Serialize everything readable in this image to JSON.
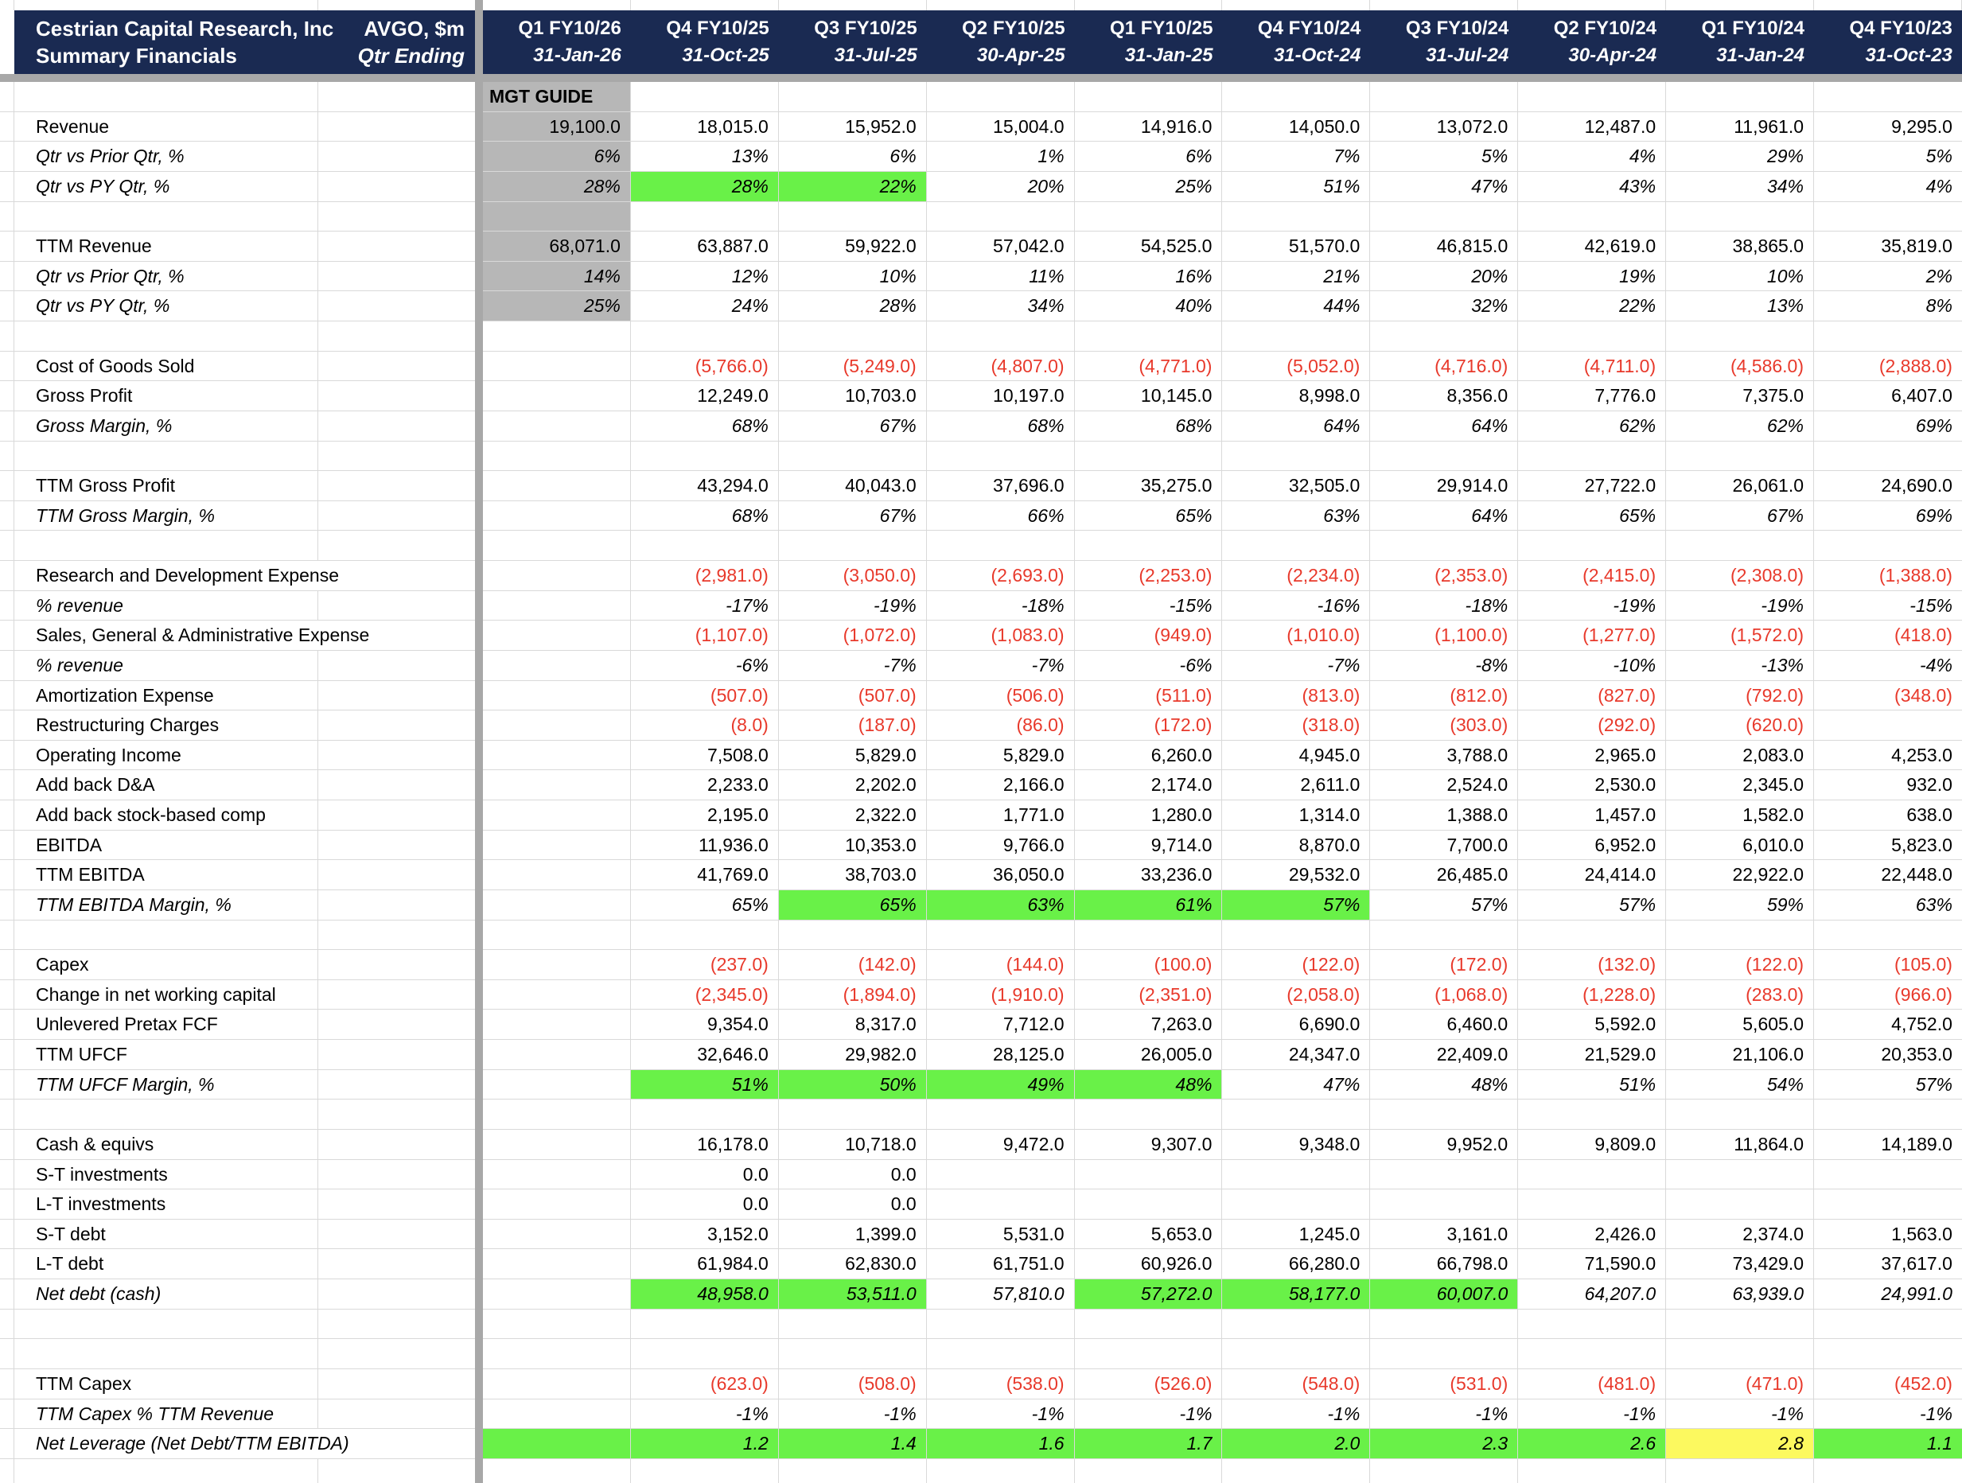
{
  "title_block": {
    "company": "Cestrian Capital Research, Inc",
    "report_title": "Summary Financials",
    "ticker": "AVGO, $m",
    "qtr_ending_label": "Qtr Ending"
  },
  "mgt_guide_label": "MGT GUIDE",
  "colors": {
    "header_navy": "#1a2a52",
    "highlight_green": "#69f148",
    "highlight_yellow": "#fcf95f",
    "mgt_column_grey": "#b7b7b7",
    "negative_red": "#e8392b",
    "gridline": "#d9d9d9",
    "pane_divider": "#a8a8a8"
  },
  "columns": [
    {
      "quarter": "Q1 FY10/26",
      "date": "31-Jan-26"
    },
    {
      "quarter": "Q4 FY10/25",
      "date": "31-Oct-25"
    },
    {
      "quarter": "Q3 FY10/25",
      "date": "31-Jul-25"
    },
    {
      "quarter": "Q2 FY10/25",
      "date": "30-Apr-25"
    },
    {
      "quarter": "Q1 FY10/25",
      "date": "31-Jan-25"
    },
    {
      "quarter": "Q4 FY10/24",
      "date": "31-Oct-24"
    },
    {
      "quarter": "Q3 FY10/24",
      "date": "31-Jul-24"
    },
    {
      "quarter": "Q2 FY10/24",
      "date": "30-Apr-24"
    },
    {
      "quarter": "Q1 FY10/24",
      "date": "31-Jan-24"
    },
    {
      "quarter": "Q4 FY10/23",
      "date": "31-Oct-23"
    }
  ],
  "rows": [
    {
      "name": "mgt-guide-header",
      "label": "",
      "mgt": "MGT GUIDE",
      "mgt_bg": "grey",
      "mgt_header": true,
      "values": []
    },
    {
      "name": "revenue",
      "label": "Revenue",
      "mgt": "19,100.0",
      "mgt_bg": "grey",
      "values": [
        "18,015.0",
        "15,952.0",
        "15,004.0",
        "14,916.0",
        "14,050.0",
        "13,072.0",
        "12,487.0",
        "11,961.0",
        "9,295.0"
      ]
    },
    {
      "name": "revenue-qtr-vs-prior-qtr",
      "label": "Qtr vs Prior Qtr, %",
      "italic": true,
      "mgt": "6%",
      "mgt_bg": "grey",
      "values": [
        "13%",
        "6%",
        "1%",
        "6%",
        "7%",
        "5%",
        "4%",
        "29%",
        "5%"
      ]
    },
    {
      "name": "revenue-qtr-vs-py-qtr",
      "label": "Qtr vs PY Qtr, %",
      "italic": true,
      "mgt": "28%",
      "mgt_bg": "grey",
      "values": [
        "28%",
        "22%",
        "20%",
        "25%",
        "51%",
        "47%",
        "43%",
        "34%",
        "4%"
      ],
      "hl": {
        "0": "green",
        "1": "green"
      }
    },
    {
      "name": "spacer-1",
      "label": "",
      "mgt": "",
      "mgt_bg": "grey",
      "values": []
    },
    {
      "name": "ttm-revenue",
      "label": "TTM Revenue",
      "mgt": "68,071.0",
      "mgt_bg": "grey",
      "values": [
        "63,887.0",
        "59,922.0",
        "57,042.0",
        "54,525.0",
        "51,570.0",
        "46,815.0",
        "42,619.0",
        "38,865.0",
        "35,819.0"
      ]
    },
    {
      "name": "ttm-revenue-qtr-vs-prior-qtr",
      "label": "Qtr vs Prior Qtr, %",
      "italic": true,
      "mgt": "14%",
      "mgt_bg": "grey",
      "values": [
        "12%",
        "10%",
        "11%",
        "16%",
        "21%",
        "20%",
        "19%",
        "10%",
        "2%"
      ]
    },
    {
      "name": "ttm-revenue-qtr-vs-py-qtr",
      "label": "Qtr vs PY Qtr, %",
      "italic": true,
      "mgt": "25%",
      "mgt_bg": "grey",
      "values": [
        "24%",
        "28%",
        "34%",
        "40%",
        "44%",
        "32%",
        "22%",
        "13%",
        "8%"
      ]
    },
    {
      "name": "spacer-2",
      "label": "",
      "values": []
    },
    {
      "name": "cost-of-goods-sold",
      "label": "Cost of Goods Sold",
      "red": true,
      "values": [
        "(5,766.0)",
        "(5,249.0)",
        "(4,807.0)",
        "(4,771.0)",
        "(5,052.0)",
        "(4,716.0)",
        "(4,711.0)",
        "(4,586.0)",
        "(2,888.0)"
      ]
    },
    {
      "name": "gross-profit",
      "label": "Gross Profit",
      "values": [
        "12,249.0",
        "10,703.0",
        "10,197.0",
        "10,145.0",
        "8,998.0",
        "8,356.0",
        "7,776.0",
        "7,375.0",
        "6,407.0"
      ]
    },
    {
      "name": "gross-margin",
      "label": "Gross Margin, %",
      "italic": true,
      "values": [
        "68%",
        "67%",
        "68%",
        "68%",
        "64%",
        "64%",
        "62%",
        "62%",
        "69%"
      ]
    },
    {
      "name": "spacer-3",
      "label": "",
      "values": []
    },
    {
      "name": "ttm-gross-profit",
      "label": "TTM Gross Profit",
      "values": [
        "43,294.0",
        "40,043.0",
        "37,696.0",
        "35,275.0",
        "32,505.0",
        "29,914.0",
        "27,722.0",
        "26,061.0",
        "24,690.0"
      ]
    },
    {
      "name": "ttm-gross-margin",
      "label": "TTM Gross Margin, %",
      "italic": true,
      "values": [
        "68%",
        "67%",
        "66%",
        "65%",
        "63%",
        "64%",
        "65%",
        "67%",
        "69%"
      ]
    },
    {
      "name": "spacer-4",
      "label": "",
      "values": []
    },
    {
      "name": "research-and-development-expense",
      "label": "Research and Development Expense",
      "red": true,
      "wide": true,
      "values": [
        "(2,981.0)",
        "(3,050.0)",
        "(2,693.0)",
        "(2,253.0)",
        "(2,234.0)",
        "(2,353.0)",
        "(2,415.0)",
        "(2,308.0)",
        "(1,388.0)"
      ]
    },
    {
      "name": "rd-pct-revenue",
      "label": "% revenue",
      "italic": true,
      "values": [
        "-17%",
        "-19%",
        "-18%",
        "-15%",
        "-16%",
        "-18%",
        "-19%",
        "-19%",
        "-15%"
      ]
    },
    {
      "name": "sga-expense",
      "label": "Sales, General & Administrative Expense",
      "red": true,
      "wide": true,
      "values": [
        "(1,107.0)",
        "(1,072.0)",
        "(1,083.0)",
        "(949.0)",
        "(1,010.0)",
        "(1,100.0)",
        "(1,277.0)",
        "(1,572.0)",
        "(418.0)"
      ]
    },
    {
      "name": "sga-pct-revenue",
      "label": "% revenue",
      "italic": true,
      "values": [
        "-6%",
        "-7%",
        "-7%",
        "-6%",
        "-7%",
        "-8%",
        "-10%",
        "-13%",
        "-4%"
      ]
    },
    {
      "name": "amortization-expense",
      "label": "Amortization Expense",
      "red": true,
      "values": [
        "(507.0)",
        "(507.0)",
        "(506.0)",
        "(511.0)",
        "(813.0)",
        "(812.0)",
        "(827.0)",
        "(792.0)",
        "(348.0)"
      ]
    },
    {
      "name": "restructuring-charges",
      "label": "Restructuring Charges",
      "red": true,
      "values": [
        "(8.0)",
        "(187.0)",
        "(86.0)",
        "(172.0)",
        "(318.0)",
        "(303.0)",
        "(292.0)",
        "(620.0)",
        ""
      ]
    },
    {
      "name": "operating-income",
      "label": "Operating Income",
      "values": [
        "7,508.0",
        "5,829.0",
        "5,829.0",
        "6,260.0",
        "4,945.0",
        "3,788.0",
        "2,965.0",
        "2,083.0",
        "4,253.0"
      ]
    },
    {
      "name": "add-back-da",
      "label": "Add back D&A",
      "values": [
        "2,233.0",
        "2,202.0",
        "2,166.0",
        "2,174.0",
        "2,611.0",
        "2,524.0",
        "2,530.0",
        "2,345.0",
        "932.0"
      ]
    },
    {
      "name": "add-back-stock-based-comp",
      "label": "Add back stock-based comp",
      "values": [
        "2,195.0",
        "2,322.0",
        "1,771.0",
        "1,280.0",
        "1,314.0",
        "1,388.0",
        "1,457.0",
        "1,582.0",
        "638.0"
      ]
    },
    {
      "name": "ebitda",
      "label": "EBITDA",
      "values": [
        "11,936.0",
        "10,353.0",
        "9,766.0",
        "9,714.0",
        "8,870.0",
        "7,700.0",
        "6,952.0",
        "6,010.0",
        "5,823.0"
      ]
    },
    {
      "name": "ttm-ebitda",
      "label": "TTM EBITDA",
      "values": [
        "41,769.0",
        "38,703.0",
        "36,050.0",
        "33,236.0",
        "29,532.0",
        "26,485.0",
        "24,414.0",
        "22,922.0",
        "22,448.0"
      ]
    },
    {
      "name": "ttm-ebitda-margin",
      "label": "TTM EBITDA Margin, %",
      "italic": true,
      "values": [
        "65%",
        "65%",
        "63%",
        "61%",
        "57%",
        "57%",
        "57%",
        "59%",
        "63%"
      ],
      "hl": {
        "1": "green",
        "2": "green",
        "3": "green",
        "4": "green"
      }
    },
    {
      "name": "spacer-5",
      "label": "",
      "values": []
    },
    {
      "name": "capex",
      "label": "Capex",
      "red": true,
      "values": [
        "(237.0)",
        "(142.0)",
        "(144.0)",
        "(100.0)",
        "(122.0)",
        "(172.0)",
        "(132.0)",
        "(122.0)",
        "(105.0)"
      ]
    },
    {
      "name": "change-in-net-working-capital",
      "label": "Change in net working capital",
      "red": true,
      "values": [
        "(2,345.0)",
        "(1,894.0)",
        "(1,910.0)",
        "(2,351.0)",
        "(2,058.0)",
        "(1,068.0)",
        "(1,228.0)",
        "(283.0)",
        "(966.0)"
      ]
    },
    {
      "name": "unlevered-pretax-fcf",
      "label": "Unlevered Pretax FCF",
      "values": [
        "9,354.0",
        "8,317.0",
        "7,712.0",
        "7,263.0",
        "6,690.0",
        "6,460.0",
        "5,592.0",
        "5,605.0",
        "4,752.0"
      ]
    },
    {
      "name": "ttm-ufcf",
      "label": "TTM UFCF",
      "values": [
        "32,646.0",
        "29,982.0",
        "28,125.0",
        "26,005.0",
        "24,347.0",
        "22,409.0",
        "21,529.0",
        "21,106.0",
        "20,353.0"
      ]
    },
    {
      "name": "ttm-ufcf-margin",
      "label": "TTM UFCF Margin, %",
      "italic": true,
      "values": [
        "51%",
        "50%",
        "49%",
        "48%",
        "47%",
        "48%",
        "51%",
        "54%",
        "57%"
      ],
      "hl": {
        "0": "green",
        "1": "green",
        "2": "green",
        "3": "green"
      }
    },
    {
      "name": "spacer-6",
      "label": "",
      "values": []
    },
    {
      "name": "cash-and-equivs",
      "label": "Cash & equivs",
      "values": [
        "16,178.0",
        "10,718.0",
        "9,472.0",
        "9,307.0",
        "9,348.0",
        "9,952.0",
        "9,809.0",
        "11,864.0",
        "14,189.0"
      ]
    },
    {
      "name": "st-investments",
      "label": "S-T investments",
      "values": [
        "0.0",
        "0.0",
        "",
        "",
        "",
        "",
        "",
        "",
        ""
      ]
    },
    {
      "name": "lt-investments",
      "label": "L-T investments",
      "values": [
        "0.0",
        "0.0",
        "",
        "",
        "",
        "",
        "",
        "",
        ""
      ]
    },
    {
      "name": "st-debt",
      "label": "S-T debt",
      "values": [
        "3,152.0",
        "1,399.0",
        "5,531.0",
        "5,653.0",
        "1,245.0",
        "3,161.0",
        "2,426.0",
        "2,374.0",
        "1,563.0"
      ]
    },
    {
      "name": "lt-debt",
      "label": "L-T debt",
      "values": [
        "61,984.0",
        "62,830.0",
        "61,751.0",
        "60,926.0",
        "66,280.0",
        "66,798.0",
        "71,590.0",
        "73,429.0",
        "37,617.0"
      ]
    },
    {
      "name": "net-debt-cash",
      "label": "Net debt (cash)",
      "italic": true,
      "values": [
        "48,958.0",
        "53,511.0",
        "57,810.0",
        "57,272.0",
        "58,177.0",
        "60,007.0",
        "64,207.0",
        "63,939.0",
        "24,991.0"
      ],
      "hl": {
        "0": "green",
        "1": "green",
        "3": "green",
        "4": "green",
        "5": "green"
      }
    },
    {
      "name": "spacer-7",
      "label": "",
      "values": []
    },
    {
      "name": "spacer-8",
      "label": "",
      "values": []
    },
    {
      "name": "ttm-capex",
      "label": "TTM Capex",
      "red": true,
      "values": [
        "(623.0)",
        "(508.0)",
        "(538.0)",
        "(526.0)",
        "(548.0)",
        "(531.0)",
        "(481.0)",
        "(471.0)",
        "(452.0)"
      ]
    },
    {
      "name": "ttm-capex-pct-ttm-revenue",
      "label": "TTM Capex % TTM Revenue",
      "italic": true,
      "values": [
        "-1%",
        "-1%",
        "-1%",
        "-1%",
        "-1%",
        "-1%",
        "-1%",
        "-1%",
        "-1%"
      ]
    },
    {
      "name": "net-leverage",
      "label": "Net Leverage (Net Debt/TTM EBITDA)",
      "italic": true,
      "wide": true,
      "mgt": "",
      "mgt_bg": "green",
      "values": [
        "1.2",
        "1.4",
        "1.6",
        "1.7",
        "2.0",
        "2.3",
        "2.6",
        "2.8",
        "1.1"
      ],
      "hl": {
        "0": "green",
        "1": "green",
        "2": "green",
        "3": "green",
        "4": "green",
        "5": "green",
        "6": "green",
        "7": "yellow",
        "8": "green"
      }
    }
  ]
}
